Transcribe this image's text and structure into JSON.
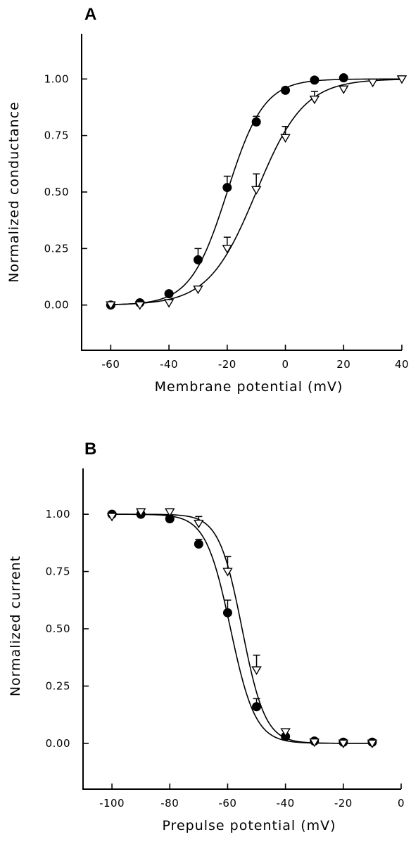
{
  "chart_data": [
    {
      "panel": "A",
      "type": "scatter",
      "xlabel": "Membrane potential (mV)",
      "ylabel": "Normalized conductance",
      "xlim": [
        -70,
        40
      ],
      "ylim": [
        -0.2,
        1.2
      ],
      "xticks": [
        -60,
        -40,
        -20,
        0,
        20,
        40
      ],
      "xtick_labels": [
        "-60",
        "-40",
        "-20",
        "0",
        "20",
        "40"
      ],
      "yticks": [
        0,
        0.25,
        0.5,
        0.75,
        1.0
      ],
      "ytick_labels": [
        "0.00",
        "0.25",
        "0.50",
        "0.75",
        "1.00"
      ],
      "grid": false,
      "series": [
        {
          "marker": "filled-circle",
          "x": [
            -60,
            -50,
            -40,
            -30,
            -20,
            -10,
            0,
            10,
            20
          ],
          "y": [
            0.0,
            0.01,
            0.05,
            0.2,
            0.52,
            0.81,
            0.95,
            0.995,
            1.005
          ],
          "err": [
            0,
            0,
            0,
            0.05,
            0.05,
            0.025,
            0,
            0,
            0
          ],
          "fit": {
            "model": "boltzmann-activation",
            "v_half": -20,
            "k": 6.3
          }
        },
        {
          "marker": "open-down-triangle",
          "x": [
            -60,
            -50,
            -40,
            -30,
            -20,
            -10,
            0,
            10,
            20,
            30,
            40
          ],
          "y": [
            0.0,
            0.0,
            0.01,
            0.07,
            0.25,
            0.51,
            0.74,
            0.91,
            0.955,
            0.985,
            1.0
          ],
          "err": [
            0,
            0,
            0,
            0,
            0.05,
            0.07,
            0.05,
            0.035,
            0,
            0,
            0
          ],
          "fit": {
            "model": "boltzmann-activation",
            "v_half": -10,
            "k": 8.2
          }
        }
      ]
    },
    {
      "panel": "B",
      "type": "scatter",
      "xlabel": "Prepulse potential (mV)",
      "ylabel": "Normalized current",
      "xlim": [
        -110,
        0
      ],
      "ylim": [
        -0.2,
        1.2
      ],
      "xticks": [
        -100,
        -80,
        -60,
        -40,
        -20,
        0
      ],
      "xtick_labels": [
        "-100",
        "-80",
        "-60",
        "-40",
        "-20",
        "0"
      ],
      "yticks": [
        0,
        0.25,
        0.5,
        0.75,
        1.0
      ],
      "ytick_labels": [
        "0.00",
        "0.25",
        "0.50",
        "0.75",
        "1.00"
      ],
      "grid": false,
      "series": [
        {
          "marker": "filled-circle",
          "x": [
            -100,
            -90,
            -80,
            -70,
            -60,
            -50,
            -40,
            -30,
            -20,
            -10
          ],
          "y": [
            1.0,
            1.0,
            0.98,
            0.87,
            0.57,
            0.16,
            0.03,
            0.01,
            0.005,
            0.005
          ],
          "err": [
            0,
            0,
            0,
            0.02,
            0.055,
            0.035,
            0,
            0,
            0,
            0
          ],
          "fit": {
            "model": "boltzmann-inactivation",
            "v_half": -59,
            "k": 4.3
          }
        },
        {
          "marker": "open-down-triangle",
          "x": [
            -100,
            -90,
            -80,
            -70,
            -60,
            -50,
            -40,
            -30,
            -20,
            -10
          ],
          "y": [
            0.99,
            1.01,
            1.01,
            0.96,
            0.75,
            0.32,
            0.05,
            0.005,
            0.0,
            0.0
          ],
          "err": [
            0,
            0,
            0,
            0.03,
            0.065,
            0.065,
            0,
            0,
            0,
            0
          ],
          "fit": {
            "model": "boltzmann-inactivation",
            "v_half": -55,
            "k": 4.0
          }
        }
      ]
    }
  ]
}
